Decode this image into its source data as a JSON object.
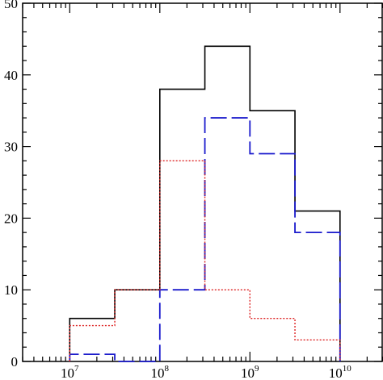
{
  "chart_data": {
    "type": "histogram",
    "x_scale": "log",
    "xlim": [
      3000000.0,
      30000000000.0
    ],
    "ylim": [
      0,
      50
    ],
    "bin_edges": [
      10000000,
      31622777,
      100000000,
      316227766,
      1000000000,
      3162277660,
      10000000000
    ],
    "x_tick_labels": [
      {
        "value": 10000000,
        "base": "10",
        "exp": "7"
      },
      {
        "value": 100000000,
        "base": "10",
        "exp": "8"
      },
      {
        "value": 1000000000,
        "base": "10",
        "exp": "9"
      },
      {
        "value": 10000000000,
        "base": "10",
        "exp": "10"
      }
    ],
    "y_ticks": [
      0,
      10,
      20,
      30,
      40,
      50
    ],
    "y_tick_labels": [
      "0",
      "10",
      "20",
      "30",
      "40",
      "50"
    ],
    "series": [
      {
        "style": "solid",
        "color": "#000000",
        "values": [
          6,
          10,
          38,
          44,
          35,
          21
        ]
      },
      {
        "style": "dashed",
        "color": "#1a1acc",
        "values": [
          1,
          0,
          10,
          34,
          29,
          18
        ]
      },
      {
        "style": "dotted",
        "color": "#dd2222",
        "values": [
          5,
          10,
          28,
          10,
          6,
          3
        ]
      }
    ],
    "xlabel": "",
    "ylabel": "",
    "title": "",
    "grid": false,
    "legend": "none"
  }
}
